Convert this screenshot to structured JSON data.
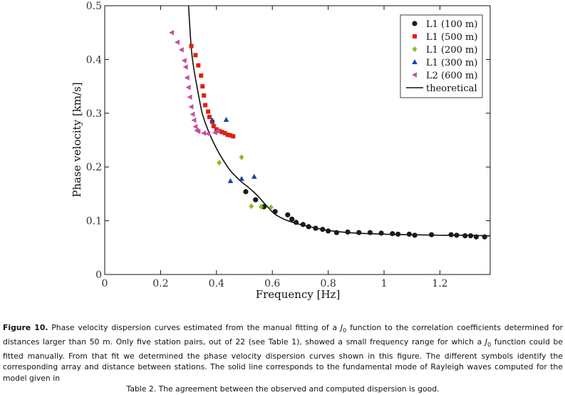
{
  "chart_data": {
    "type": "scatter",
    "xlabel": "Frequency [Hz]",
    "ylabel": "Phase velocity [km/s]",
    "xlim": [
      0,
      1.38
    ],
    "ylim": [
      0,
      0.5
    ],
    "xticks": [
      0,
      0.2,
      0.4,
      0.6,
      0.8,
      1,
      1.2
    ],
    "xtick_labels": [
      "0",
      "0.2",
      "0.4",
      "0.6",
      "0.8",
      "1",
      "1.2"
    ],
    "yticks": [
      0,
      0.1,
      0.2,
      0.3,
      0.4,
      0.5
    ],
    "ytick_labels": [
      "0",
      "0.1",
      "0.2",
      "0.3",
      "0.4",
      "0.5"
    ],
    "legend_position": "top-right",
    "series": [
      {
        "name": "L1 (100 m)",
        "marker": "circle",
        "color": "#1a1a1a",
        "points": [
          [
            0.505,
            0.154
          ],
          [
            0.54,
            0.139
          ],
          [
            0.57,
            0.126
          ],
          [
            0.61,
            0.117
          ],
          [
            0.655,
            0.111
          ],
          [
            0.67,
            0.103
          ],
          [
            0.685,
            0.097
          ],
          [
            0.71,
            0.093
          ],
          [
            0.73,
            0.089
          ],
          [
            0.755,
            0.086
          ],
          [
            0.78,
            0.084
          ],
          [
            0.8,
            0.081
          ],
          [
            0.83,
            0.078
          ],
          [
            0.87,
            0.079
          ],
          [
            0.91,
            0.078
          ],
          [
            0.95,
            0.078
          ],
          [
            0.99,
            0.077
          ],
          [
            1.03,
            0.076
          ],
          [
            1.05,
            0.075
          ],
          [
            1.09,
            0.075
          ],
          [
            1.11,
            0.073
          ],
          [
            1.17,
            0.074
          ],
          [
            1.24,
            0.074
          ],
          [
            1.26,
            0.073
          ],
          [
            1.29,
            0.072
          ],
          [
            1.31,
            0.072
          ],
          [
            1.33,
            0.07
          ],
          [
            1.36,
            0.07
          ]
        ]
      },
      {
        "name": "L1 (500 m)",
        "marker": "square",
        "color": "#e02010",
        "points": [
          [
            0.31,
            0.425
          ],
          [
            0.325,
            0.408
          ],
          [
            0.335,
            0.389
          ],
          [
            0.345,
            0.37
          ],
          [
            0.35,
            0.35
          ],
          [
            0.355,
            0.333
          ],
          [
            0.36,
            0.315
          ],
          [
            0.37,
            0.303
          ],
          [
            0.375,
            0.293
          ],
          [
            0.385,
            0.284
          ],
          [
            0.39,
            0.276
          ],
          [
            0.4,
            0.27
          ],
          [
            0.41,
            0.267
          ],
          [
            0.42,
            0.265
          ],
          [
            0.43,
            0.263
          ],
          [
            0.44,
            0.26
          ],
          [
            0.45,
            0.259
          ],
          [
            0.46,
            0.257
          ]
        ]
      },
      {
        "name": "L1 (200 m)",
        "marker": "diamond",
        "color": "#88bb22",
        "points": [
          [
            0.41,
            0.208
          ],
          [
            0.49,
            0.218
          ],
          [
            0.525,
            0.127
          ],
          [
            0.56,
            0.126
          ],
          [
            0.595,
            0.125
          ]
        ]
      },
      {
        "name": "L1 (300 m)",
        "marker": "triangle",
        "color": "#1a44a0",
        "points": [
          [
            0.385,
            0.287
          ],
          [
            0.435,
            0.288
          ],
          [
            0.45,
            0.174
          ],
          [
            0.49,
            0.178
          ],
          [
            0.535,
            0.182
          ]
        ]
      },
      {
        "name": "L2 (600 m)",
        "marker": "triangle-left",
        "color": "#c050a0",
        "points": [
          [
            0.24,
            0.45
          ],
          [
            0.26,
            0.432
          ],
          [
            0.275,
            0.418
          ],
          [
            0.285,
            0.398
          ],
          [
            0.29,
            0.386
          ],
          [
            0.295,
            0.366
          ],
          [
            0.3,
            0.348
          ],
          [
            0.305,
            0.33
          ],
          [
            0.31,
            0.312
          ],
          [
            0.315,
            0.298
          ],
          [
            0.32,
            0.287
          ],
          [
            0.325,
            0.275
          ],
          [
            0.33,
            0.268
          ],
          [
            0.335,
            0.266
          ],
          [
            0.355,
            0.263
          ],
          [
            0.37,
            0.262
          ],
          [
            0.395,
            0.264
          ],
          [
            0.405,
            0.267
          ]
        ]
      }
    ],
    "theoretical": {
      "name": "theoretical",
      "color": "#111111",
      "points": [
        [
          0.3,
          0.5
        ],
        [
          0.31,
          0.42
        ],
        [
          0.32,
          0.38
        ],
        [
          0.33,
          0.35
        ],
        [
          0.34,
          0.322
        ],
        [
          0.35,
          0.298
        ],
        [
          0.37,
          0.268
        ],
        [
          0.39,
          0.245
        ],
        [
          0.41,
          0.225
        ],
        [
          0.43,
          0.208
        ],
        [
          0.45,
          0.193
        ],
        [
          0.47,
          0.182
        ],
        [
          0.49,
          0.172
        ],
        [
          0.51,
          0.164
        ],
        [
          0.53,
          0.155
        ],
        [
          0.55,
          0.145
        ],
        [
          0.57,
          0.133
        ],
        [
          0.59,
          0.122
        ],
        [
          0.61,
          0.112
        ],
        [
          0.65,
          0.101
        ],
        [
          0.7,
          0.093
        ],
        [
          0.75,
          0.087
        ],
        [
          0.8,
          0.082
        ],
        [
          0.85,
          0.079
        ],
        [
          0.9,
          0.077
        ],
        [
          1.0,
          0.075
        ],
        [
          1.1,
          0.074
        ],
        [
          1.2,
          0.073
        ],
        [
          1.3,
          0.073
        ],
        [
          1.38,
          0.072
        ]
      ]
    }
  },
  "caption": {
    "label": "Figure 10.",
    "p1": " Phase velocity dispersion curves estimated from the manual fitting of a ",
    "j1": "J",
    "j1sub": "0",
    "p2": " function to the correlation coefficients determined for distances larger than 50 m. Only five station pairs, out of 22 (see Table 1), showed a small frequency range for which a ",
    "j2": "J",
    "j2sub": "0",
    "p3": " function could be fitted manually. From that fit we determined the phase velocity dispersion curves shown in this figure. The different symbols identify the corresponding array and distance between stations. The solid line corresponds to the fundamental mode of Rayleigh waves computed for the model given in",
    "p4": "Table 2. The agreement between the observed and computed dispersion is good."
  }
}
